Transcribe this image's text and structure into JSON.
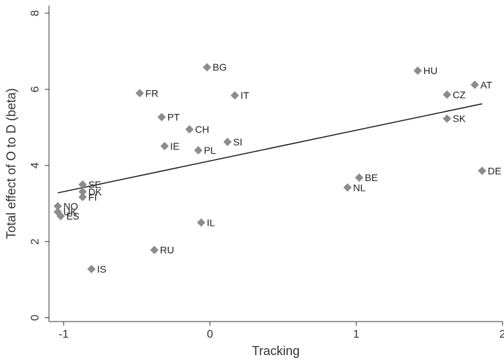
{
  "chart_data": {
    "type": "scatter",
    "title": "",
    "xlabel": "Tracking",
    "ylabel": "Total effect of O to D (beta)",
    "xlim": [
      -1.1,
      2.0
    ],
    "ylim": [
      -0.1,
      8.2
    ],
    "x_ticks": [
      -1,
      0,
      1,
      2
    ],
    "y_ticks": [
      0,
      2,
      4,
      6,
      8
    ],
    "x_tick_labels": [
      "-1",
      "0",
      "1",
      "2"
    ],
    "y_tick_labels": [
      "0",
      "2",
      "4",
      "6",
      "8"
    ],
    "grid": false,
    "legend": "none",
    "marker_color": "#8c8c8c",
    "line_color": "#1a1a1a",
    "points": [
      {
        "label": "BG",
        "x": -0.02,
        "y": 6.58
      },
      {
        "label": "HU",
        "x": 1.42,
        "y": 6.49
      },
      {
        "label": "AT",
        "x": 1.81,
        "y": 6.12
      },
      {
        "label": "FR",
        "x": -0.48,
        "y": 5.9
      },
      {
        "label": "CZ",
        "x": 1.62,
        "y": 5.86
      },
      {
        "label": "IT",
        "x": 0.17,
        "y": 5.84
      },
      {
        "label": "PT",
        "x": -0.33,
        "y": 5.27
      },
      {
        "label": "SK",
        "x": 1.62,
        "y": 5.23
      },
      {
        "label": "CH",
        "x": -0.14,
        "y": 4.95
      },
      {
        "label": "SI",
        "x": 0.12,
        "y": 4.62
      },
      {
        "label": "IE",
        "x": -0.31,
        "y": 4.51
      },
      {
        "label": "PL",
        "x": -0.08,
        "y": 4.4
      },
      {
        "label": "DE",
        "x": 1.86,
        "y": 3.86
      },
      {
        "label": "BE",
        "x": 1.02,
        "y": 3.68
      },
      {
        "label": "SE",
        "x": -0.87,
        "y": 3.5
      },
      {
        "label": "NL",
        "x": 0.94,
        "y": 3.42
      },
      {
        "label": "DK",
        "x": -0.87,
        "y": 3.31
      },
      {
        "label": "FI",
        "x": -0.87,
        "y": 3.17
      },
      {
        "label": "NO",
        "x": -1.04,
        "y": 2.93
      },
      {
        "label": "UK",
        "x": -1.04,
        "y": 2.78
      },
      {
        "label": "ES",
        "x": -1.02,
        "y": 2.67
      },
      {
        "label": "IL",
        "x": -0.06,
        "y": 2.5
      },
      {
        "label": "RU",
        "x": -0.38,
        "y": 1.78
      },
      {
        "label": "IS",
        "x": -0.81,
        "y": 1.28
      }
    ],
    "fit_line": {
      "x": [
        -1.04,
        1.86
      ],
      "y": [
        3.28,
        5.62
      ]
    }
  }
}
